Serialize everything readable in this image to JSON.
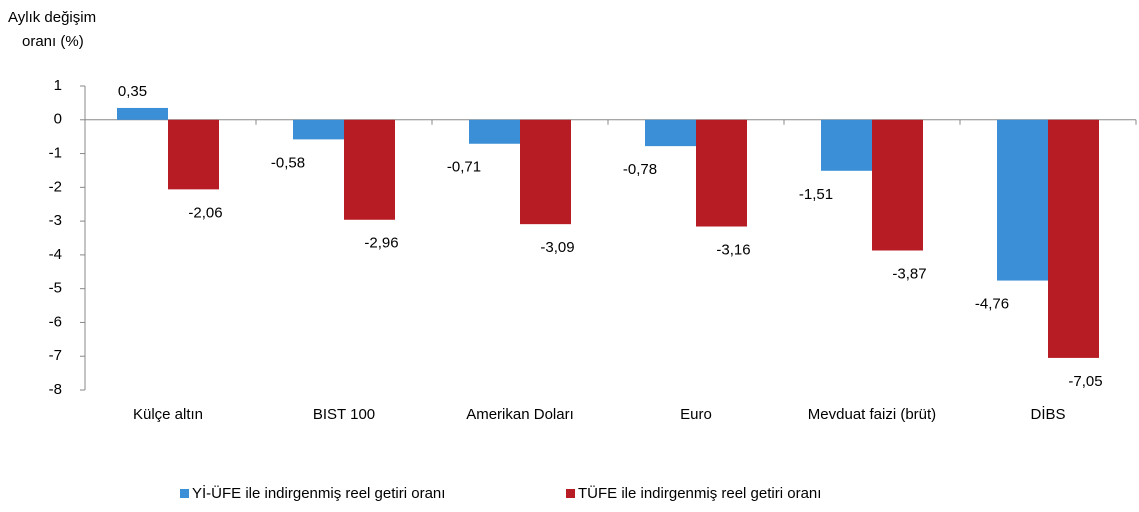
{
  "chart_data": {
    "type": "bar",
    "ylabel": [
      "Aylık değişim",
      "oranı (%)"
    ],
    "categories": [
      "Külçe altın",
      "BIST 100",
      "Amerikan Doları",
      "Euro",
      "Mevduat faizi (brüt)",
      "DİBS"
    ],
    "series": [
      {
        "name": "Yİ-ÜFE ile indirgenmiş reel getiri oranı",
        "color": "#3a8fd6",
        "values": [
          0.35,
          -0.58,
          -0.71,
          -0.78,
          -1.51,
          -4.76
        ],
        "value_labels": [
          "0,35",
          "-0,58",
          "-0,71",
          "-0,78",
          "-1,51",
          "-4,76"
        ]
      },
      {
        "name": "TÜFE ile indirgenmiş reel getiri oranı",
        "color": "#b71c24",
        "values": [
          -2.06,
          -2.96,
          -3.09,
          -3.16,
          -3.87,
          -7.05
        ],
        "value_labels": [
          "-2,06",
          "-2,96",
          "-3,09",
          "-3,16",
          "-3,87",
          "-7,05"
        ]
      }
    ],
    "ylim": [
      -8,
      1
    ],
    "yticks": [
      1,
      0,
      -1,
      -2,
      -3,
      -4,
      -5,
      -6,
      -7,
      -8
    ]
  }
}
